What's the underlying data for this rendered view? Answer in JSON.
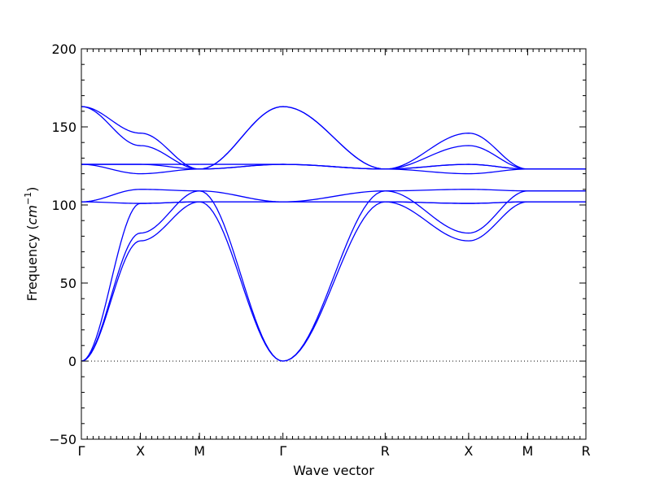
{
  "chart_data": {
    "type": "line",
    "title": "",
    "xlabel": "Wave vector",
    "ylabel_text": "Frequency (",
    "ylabel_unit_base": "cm",
    "ylabel_unit_exp": "−1",
    "ylabel_close": ")",
    "ylim": [
      -50,
      200
    ],
    "yticks": [
      -50,
      0,
      50,
      100,
      150,
      200
    ],
    "ytick_labels": [
      "−50",
      "0",
      "50",
      "100",
      "150",
      "200"
    ],
    "x_kpoints": [
      {
        "label": "Γ",
        "x": 0
      },
      {
        "label": "X",
        "x": 0.5
      },
      {
        "label": "M",
        "x": 1.0
      },
      {
        "label": "Γ",
        "x": 1.707
      },
      {
        "label": "R",
        "x": 2.573
      },
      {
        "label": "X",
        "x": 3.28
      },
      {
        "label": "M",
        "x": 3.78
      },
      {
        "label": "R",
        "x": 4.273
      }
    ],
    "xlim": [
      0,
      4.273
    ],
    "zero_line": {
      "y": 0,
      "style": "dotted"
    },
    "series_color": "#0000ff",
    "grid": false,
    "branches": [
      {
        "segments": [
          [
            [
              0,
              0
            ],
            [
              0.5,
              77
            ],
            [
              1.0,
              102
            ]
          ],
          [
            [
              1.0,
              102
            ],
            [
              1.707,
              0
            ]
          ],
          [
            [
              1.707,
              0
            ],
            [
              2.573,
              102
            ]
          ],
          [
            [
              2.573,
              102
            ],
            [
              3.28,
              77
            ],
            [
              3.78,
              102
            ]
          ],
          [
            [
              3.78,
              102
            ],
            [
              4.273,
              102
            ]
          ]
        ]
      },
      {
        "segments": [
          [
            [
              0,
              0
            ],
            [
              0.5,
              82
            ],
            [
              1.0,
              109
            ]
          ],
          [
            [
              1.0,
              109
            ],
            [
              1.707,
              0
            ]
          ],
          [
            [
              1.707,
              0
            ],
            [
              2.573,
              109
            ]
          ],
          [
            [
              2.573,
              109
            ],
            [
              3.28,
              82
            ],
            [
              3.78,
              109
            ]
          ],
          [
            [
              3.78,
              109
            ],
            [
              4.273,
              109
            ]
          ]
        ]
      },
      {
        "segments": [
          [
            [
              0,
              0
            ],
            [
              0.5,
              101
            ],
            [
              1.0,
              102
            ]
          ],
          [
            [
              1.0,
              102
            ],
            [
              1.707,
              102
            ]
          ],
          [
            [
              1.707,
              102
            ],
            [
              2.573,
              102
            ]
          ],
          [
            [
              2.573,
              102
            ],
            [
              3.28,
              101
            ],
            [
              3.78,
              102
            ]
          ],
          [
            [
              3.78,
              102
            ],
            [
              4.273,
              102
            ]
          ]
        ]
      },
      {
        "segments": [
          [
            [
              0,
              102
            ],
            [
              0.5,
              110
            ],
            [
              1.0,
              109
            ]
          ],
          [
            [
              1.0,
              109
            ],
            [
              1.707,
              102
            ]
          ],
          [
            [
              1.707,
              102
            ],
            [
              2.573,
              109
            ]
          ],
          [
            [
              2.573,
              109
            ],
            [
              3.28,
              110
            ],
            [
              3.78,
              109
            ]
          ],
          [
            [
              3.78,
              109
            ],
            [
              4.273,
              109
            ]
          ]
        ]
      },
      {
        "segments": [
          [
            [
              0,
              102
            ],
            [
              0.5,
              101
            ],
            [
              1.0,
              102
            ]
          ],
          [
            [
              1.0,
              102
            ],
            [
              1.707,
              102
            ]
          ],
          [
            [
              1.707,
              102
            ],
            [
              2.573,
              102
            ]
          ],
          [
            [
              2.573,
              102
            ],
            [
              3.28,
              101
            ],
            [
              3.78,
              102
            ]
          ],
          [
            [
              3.78,
              102
            ],
            [
              4.273,
              102
            ]
          ]
        ]
      },
      {
        "segments": [
          [
            [
              0,
              126
            ],
            [
              0.5,
              120
            ],
            [
              1.0,
              123
            ]
          ],
          [
            [
              1.0,
              123
            ],
            [
              1.707,
              126
            ]
          ],
          [
            [
              1.707,
              126
            ],
            [
              2.573,
              123
            ]
          ],
          [
            [
              2.573,
              123
            ],
            [
              3.28,
              120
            ],
            [
              3.78,
              123
            ]
          ],
          [
            [
              3.78,
              123
            ],
            [
              4.273,
              123
            ]
          ]
        ]
      },
      {
        "segments": [
          [
            [
              0,
              126
            ],
            [
              0.5,
              126
            ],
            [
              1.0,
              123
            ]
          ],
          [
            [
              1.0,
              123
            ],
            [
              1.707,
              126
            ]
          ],
          [
            [
              1.707,
              126
            ],
            [
              2.573,
              123
            ]
          ],
          [
            [
              2.573,
              123
            ],
            [
              3.28,
              126
            ],
            [
              3.78,
              123
            ]
          ],
          [
            [
              3.78,
              123
            ],
            [
              4.273,
              123
            ]
          ]
        ]
      },
      {
        "segments": [
          [
            [
              0,
              163
            ],
            [
              0.5,
              138
            ],
            [
              1.0,
              123
            ]
          ],
          [
            [
              1.0,
              123
            ],
            [
              1.707,
              163
            ]
          ],
          [
            [
              1.707,
              163
            ],
            [
              2.573,
              123
            ]
          ],
          [
            [
              2.573,
              123
            ],
            [
              3.28,
              138
            ],
            [
              3.78,
              123
            ]
          ],
          [
            [
              3.78,
              123
            ],
            [
              4.273,
              123
            ]
          ]
        ]
      },
      {
        "segments": [
          [
            [
              0,
              163
            ],
            [
              0.5,
              146
            ],
            [
              1.0,
              123
            ]
          ],
          [
            [
              1.0,
              123
            ],
            [
              1.707,
              163
            ]
          ],
          [
            [
              1.707,
              163
            ],
            [
              2.573,
              123
            ]
          ],
          [
            [
              2.573,
              123
            ],
            [
              3.28,
              146
            ],
            [
              3.78,
              123
            ]
          ],
          [
            [
              3.78,
              123
            ],
            [
              4.273,
              123
            ]
          ]
        ]
      },
      {
        "segments": [
          [
            [
              0,
              126
            ],
            [
              0.5,
              126
            ],
            [
              1.0,
              126
            ]
          ],
          [
            [
              1.0,
              126
            ],
            [
              1.707,
              126
            ]
          ],
          [
            [
              1.707,
              126
            ],
            [
              2.573,
              123
            ]
          ],
          [
            [
              2.573,
              123
            ],
            [
              3.28,
              126
            ],
            [
              3.78,
              123
            ]
          ],
          [
            [
              3.78,
              123
            ],
            [
              4.273,
              123
            ]
          ]
        ]
      }
    ]
  }
}
